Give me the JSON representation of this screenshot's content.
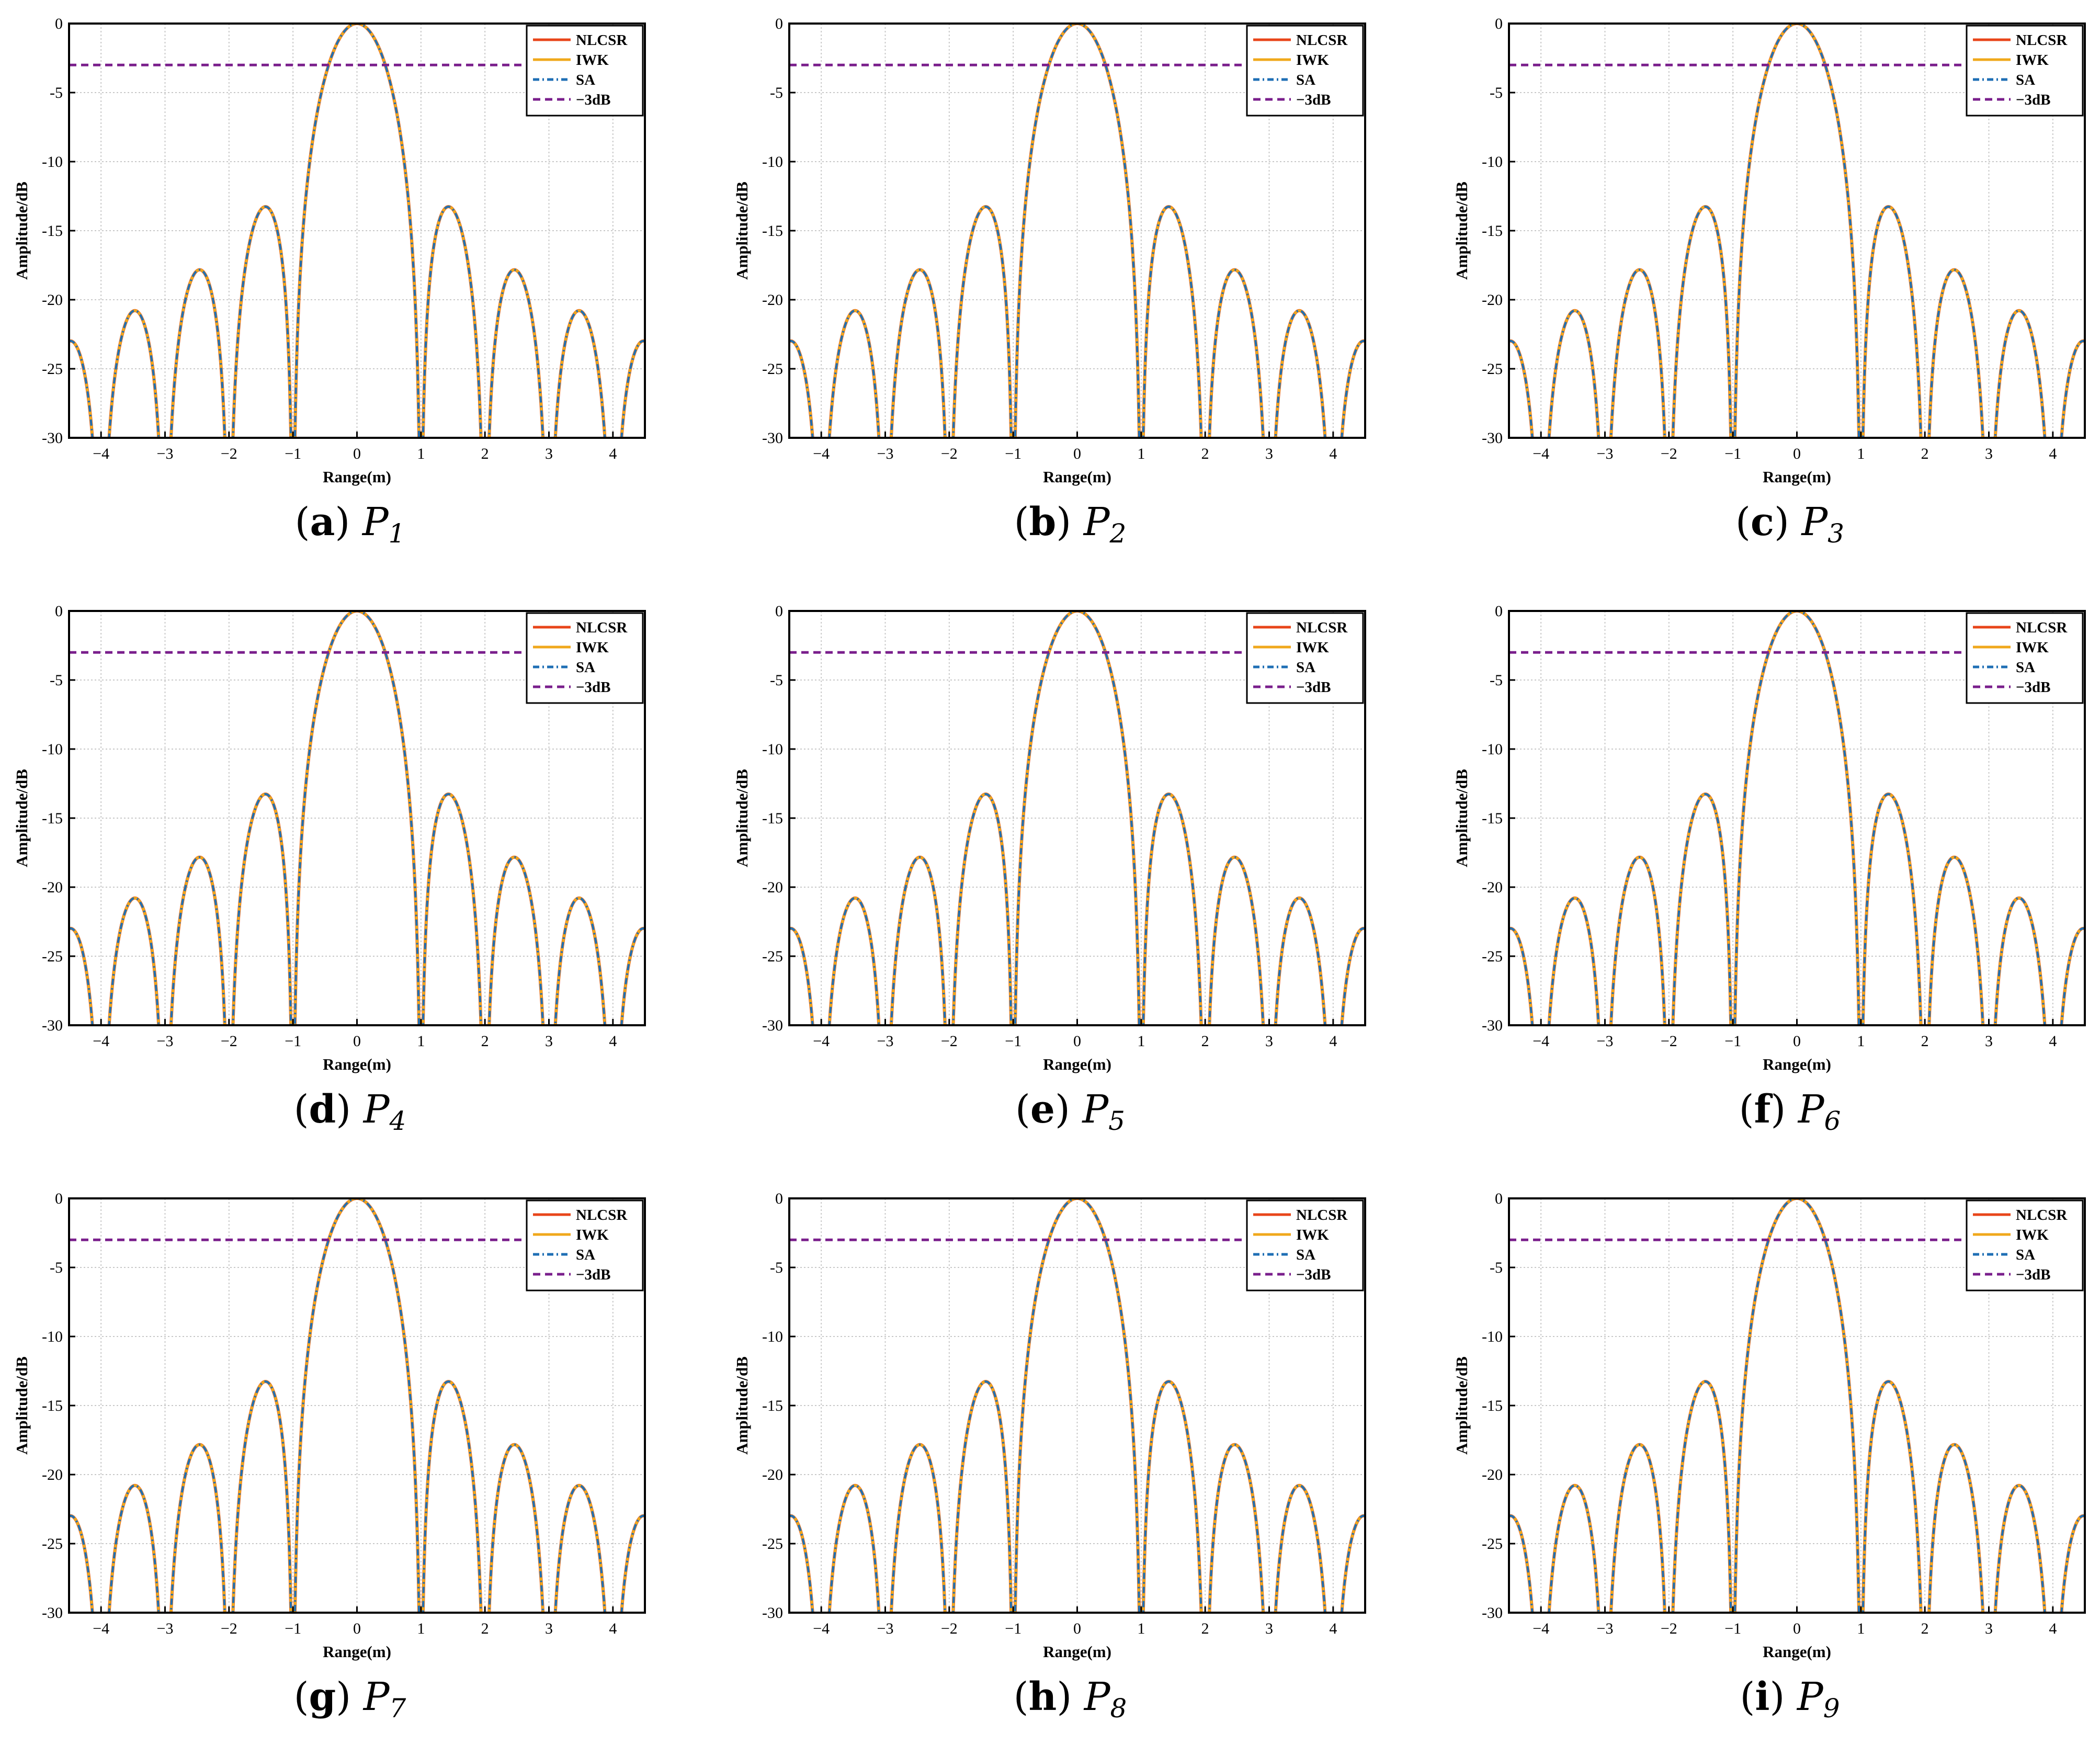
{
  "legend": [
    {
      "label": "NLCSR",
      "color": "#e8451a",
      "dash": "solid"
    },
    {
      "label": "IWK",
      "color": "#f0a81c",
      "dash": "solid"
    },
    {
      "label": "SA",
      "color": "#1f6fb5",
      "dash": "dashdot"
    },
    {
      "label": "−3dB",
      "color": "#7a1f8c",
      "dash": "dashed"
    }
  ],
  "xlabel": "Range(m)",
  "ylabel": "Amplitude/dB",
  "xticks": [
    "−4",
    "−3",
    "−2",
    "−1",
    "0",
    "1",
    "2",
    "3",
    "4"
  ],
  "yticks": [
    "0",
    "-5",
    "-10",
    "-15",
    "-20",
    "-25",
    "-30"
  ],
  "chart_data": [
    {
      "type": "line",
      "caption_letter": "a",
      "caption_var": "P",
      "caption_sub": "1",
      "xlim": [
        -4.5,
        4.5
      ],
      "ylim": [
        -30,
        0
      ],
      "threshold_db": -3,
      "grid": true,
      "legend_position": "top-right",
      "series": [
        "NLCSR",
        "IWK",
        "SA"
      ],
      "function": "sinc",
      "sidelobe_peaks_db": [
        -13.3,
        -17.8,
        -20.8,
        -23.0
      ]
    },
    {
      "type": "line",
      "caption_letter": "b",
      "caption_var": "P",
      "caption_sub": "2",
      "xlim": [
        -4.5,
        4.5
      ],
      "ylim": [
        -30,
        0
      ],
      "threshold_db": -3,
      "grid": true,
      "legend_position": "top-right",
      "series": [
        "NLCSR",
        "IWK",
        "SA"
      ],
      "function": "sinc",
      "sidelobe_peaks_db": [
        -13.3,
        -17.8,
        -20.8,
        -23.0
      ]
    },
    {
      "type": "line",
      "caption_letter": "c",
      "caption_var": "P",
      "caption_sub": "3",
      "xlim": [
        -4.5,
        4.5
      ],
      "ylim": [
        -30,
        0
      ],
      "threshold_db": -3,
      "grid": true,
      "legend_position": "top-right",
      "series": [
        "NLCSR",
        "IWK",
        "SA"
      ],
      "function": "sinc",
      "sidelobe_peaks_db": [
        -13.3,
        -17.8,
        -20.8,
        -23.0
      ]
    },
    {
      "type": "line",
      "caption_letter": "d",
      "caption_var": "P",
      "caption_sub": "4",
      "xlim": [
        -4.5,
        4.5
      ],
      "ylim": [
        -30,
        0
      ],
      "threshold_db": -3,
      "grid": true,
      "legend_position": "top-right",
      "series": [
        "NLCSR",
        "IWK",
        "SA"
      ],
      "function": "sinc",
      "sidelobe_peaks_db": [
        -13.3,
        -17.8,
        -20.8,
        -23.0
      ]
    },
    {
      "type": "line",
      "caption_letter": "e",
      "caption_var": "P",
      "caption_sub": "5",
      "xlim": [
        -4.5,
        4.5
      ],
      "ylim": [
        -30,
        0
      ],
      "threshold_db": -3,
      "grid": true,
      "legend_position": "top-right",
      "series": [
        "NLCSR",
        "IWK",
        "SA"
      ],
      "function": "sinc",
      "sidelobe_peaks_db": [
        -13.3,
        -17.8,
        -20.8,
        -23.0
      ]
    },
    {
      "type": "line",
      "caption_letter": "f",
      "caption_var": "P",
      "caption_sub": "6",
      "xlim": [
        -4.5,
        4.5
      ],
      "ylim": [
        -30,
        0
      ],
      "threshold_db": -3,
      "grid": true,
      "legend_position": "top-right",
      "series": [
        "NLCSR",
        "IWK",
        "SA"
      ],
      "function": "sinc",
      "sidelobe_peaks_db": [
        -13.3,
        -17.8,
        -20.8,
        -23.0
      ]
    },
    {
      "type": "line",
      "caption_letter": "g",
      "caption_var": "P",
      "caption_sub": "7",
      "xlim": [
        -4.5,
        4.5
      ],
      "ylim": [
        -30,
        0
      ],
      "threshold_db": -3,
      "grid": true,
      "legend_position": "top-right",
      "series": [
        "NLCSR",
        "IWK",
        "SA"
      ],
      "function": "sinc",
      "sidelobe_peaks_db": [
        -13.3,
        -17.8,
        -20.8,
        -23.0
      ]
    },
    {
      "type": "line",
      "caption_letter": "h",
      "caption_var": "P",
      "caption_sub": "8",
      "xlim": [
        -4.5,
        4.5
      ],
      "ylim": [
        -30,
        0
      ],
      "threshold_db": -3,
      "grid": true,
      "legend_position": "top-right",
      "series": [
        "NLCSR",
        "IWK",
        "SA"
      ],
      "function": "sinc",
      "sidelobe_peaks_db": [
        -13.3,
        -17.8,
        -20.8,
        -23.0
      ]
    },
    {
      "type": "line",
      "caption_letter": "i",
      "caption_var": "P",
      "caption_sub": "9",
      "xlim": [
        -4.5,
        4.5
      ],
      "ylim": [
        -30,
        0
      ],
      "threshold_db": -3,
      "grid": true,
      "legend_position": "top-right",
      "series": [
        "NLCSR",
        "IWK",
        "SA"
      ],
      "function": "sinc",
      "sidelobe_peaks_db": [
        -13.3,
        -17.8,
        -20.8,
        -23.0
      ]
    }
  ]
}
